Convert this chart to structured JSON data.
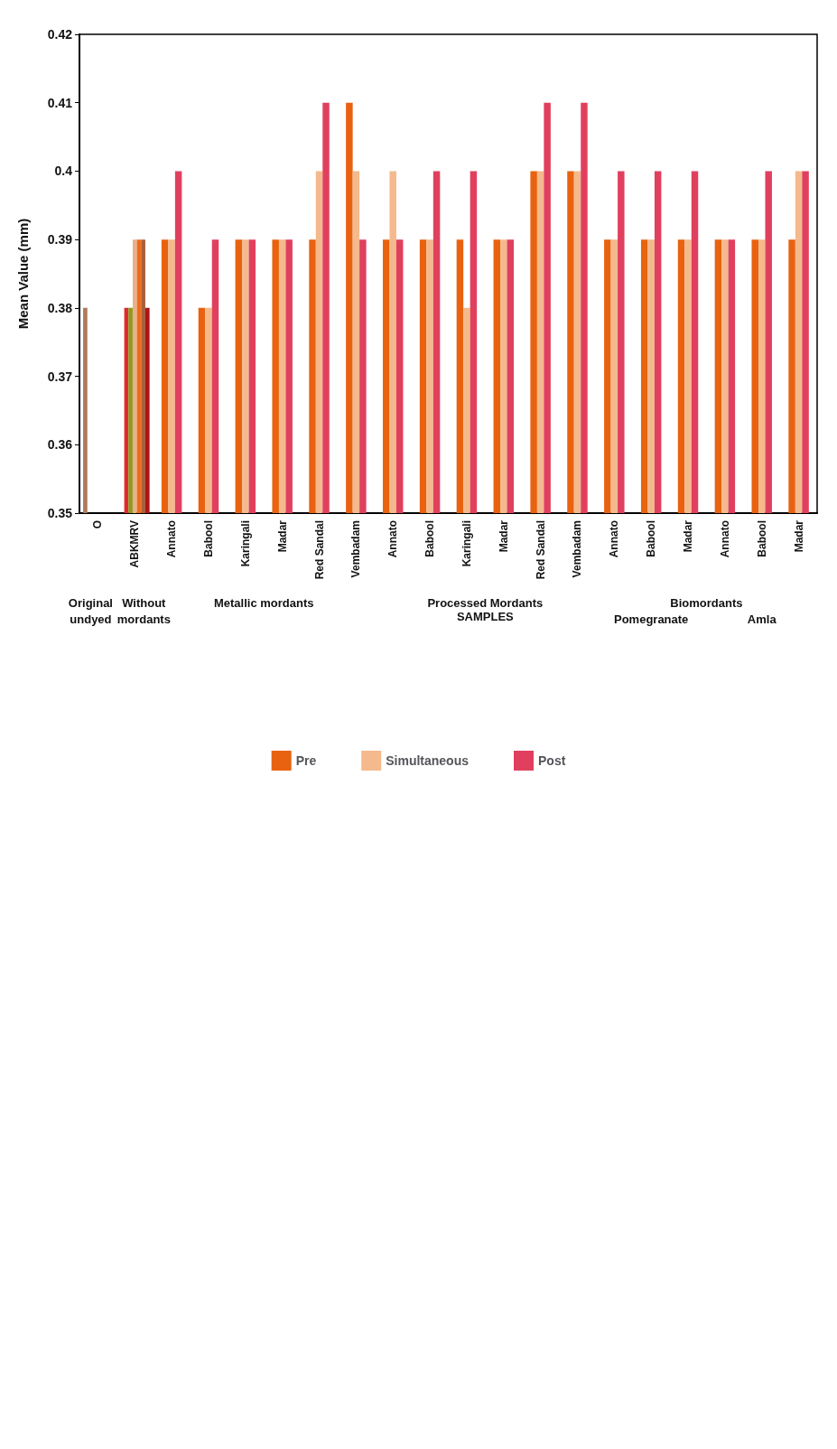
{
  "chart_data": {
    "type": "bar",
    "xlabel": "SAMPLES",
    "ylabel": "Mean Value (mm)",
    "categories": [
      "O",
      "ABKMRV",
      "Annato",
      "Babool",
      "Karingali",
      "Madar",
      "Red Sandal",
      "Vembadam",
      "Annato",
      "Babool",
      "Karingali",
      "Madar",
      "Red Sandal",
      "Vembadam",
      "Annato",
      "Babool",
      "Madar",
      "Annato",
      "Babool",
      "Madar"
    ],
    "series": [
      {
        "name": "Pre",
        "color": "#e8620f",
        "values": [
          null,
          null,
          0.39,
          0.38,
          0.39,
          0.39,
          0.39,
          0.41,
          0.39,
          0.39,
          0.39,
          0.39,
          0.4,
          0.4,
          0.39,
          0.39,
          0.39,
          0.39,
          0.39,
          0.39
        ]
      },
      {
        "name": "Simultaneous",
        "color": "#f4b98c",
        "values": [
          null,
          null,
          0.39,
          0.38,
          0.39,
          0.39,
          0.4,
          0.4,
          0.4,
          0.39,
          0.38,
          0.39,
          0.4,
          0.4,
          0.39,
          0.39,
          0.39,
          0.39,
          0.39,
          0.4
        ]
      },
      {
        "name": "Post",
        "color": "#e0405e",
        "values": [
          null,
          null,
          0.4,
          0.39,
          0.39,
          0.39,
          0.41,
          0.39,
          0.39,
          0.4,
          0.4,
          0.39,
          0.41,
          0.41,
          0.4,
          0.4,
          0.4,
          0.39,
          0.4,
          0.4
        ]
      },
      {
        "color": "#b07a5a",
        "values": [
          0.38,
          null,
          null,
          null,
          null,
          null,
          null,
          null,
          null,
          null,
          null,
          null,
          null,
          null,
          null,
          null,
          null,
          null,
          null,
          null
        ]
      },
      {
        "color": "#e02a2a",
        "values": [
          null,
          0.38,
          null,
          null,
          null,
          null,
          null,
          null,
          null,
          null,
          null,
          null,
          null,
          null,
          null,
          null,
          null,
          null,
          null,
          null
        ]
      },
      {
        "color": "#8c9a1c",
        "values": [
          null,
          0.38,
          null,
          null,
          null,
          null,
          null,
          null,
          null,
          null,
          null,
          null,
          null,
          null,
          null,
          null,
          null,
          null,
          null,
          null
        ]
      },
      {
        "color": "#e8b08c",
        "values": [
          null,
          0.39,
          null,
          null,
          null,
          null,
          null,
          null,
          null,
          null,
          null,
          null,
          null,
          null,
          null,
          null,
          null,
          null,
          null,
          null
        ]
      },
      {
        "color": "#ee6c1c",
        "values": [
          null,
          0.39,
          null,
          null,
          null,
          null,
          null,
          null,
          null,
          null,
          null,
          null,
          null,
          null,
          null,
          null,
          null,
          null,
          null,
          null
        ]
      },
      {
        "color": "#a4603e",
        "values": [
          null,
          0.39,
          null,
          null,
          null,
          null,
          null,
          null,
          null,
          null,
          null,
          null,
          null,
          null,
          null,
          null,
          null,
          null,
          null,
          null
        ]
      },
      {
        "color": "#b01414",
        "values": [
          null,
          0.38,
          null,
          null,
          null,
          null,
          null,
          null,
          null,
          null,
          null,
          null,
          null,
          null,
          null,
          null,
          null,
          null,
          null,
          null
        ]
      }
    ],
    "ylim": [
      0.35,
      0.42
    ],
    "yticks": [
      0.35,
      0.36,
      0.37,
      0.38,
      0.39,
      0.4,
      0.41,
      0.42
    ],
    "grid": false,
    "legend": "bottom",
    "annotations": [
      "Original undyed",
      "Without mordants",
      "Metallic mordants",
      "Processed Mordants",
      "Biomordants",
      "Pomegranate",
      "Amla"
    ]
  }
}
